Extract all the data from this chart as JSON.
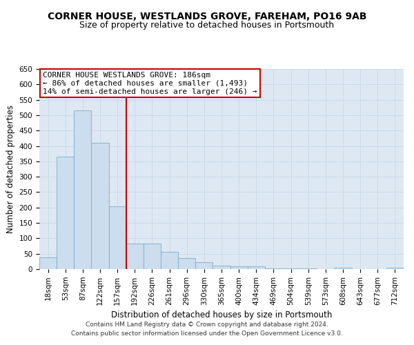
{
  "title": "CORNER HOUSE, WESTLANDS GROVE, FAREHAM, PO16 9AB",
  "subtitle": "Size of property relative to detached houses in Portsmouth",
  "xlabel": "Distribution of detached houses by size in Portsmouth",
  "ylabel": "Number of detached properties",
  "bar_labels": [
    "18sqm",
    "53sqm",
    "87sqm",
    "122sqm",
    "157sqm",
    "192sqm",
    "226sqm",
    "261sqm",
    "296sqm",
    "330sqm",
    "365sqm",
    "400sqm",
    "434sqm",
    "469sqm",
    "504sqm",
    "539sqm",
    "573sqm",
    "608sqm",
    "643sqm",
    "677sqm",
    "712sqm"
  ],
  "bar_values": [
    37,
    365,
    515,
    410,
    205,
    82,
    82,
    57,
    35,
    22,
    12,
    8,
    8,
    2,
    2,
    2,
    0,
    4,
    0,
    0,
    4
  ],
  "bar_color": "#ccdded",
  "bar_edge_color": "#7aaccc",
  "vline_index": 5,
  "vline_color": "#cc0000",
  "annotation_text": "CORNER HOUSE WESTLANDS GROVE: 186sqm\n← 86% of detached houses are smaller (1,493)\n14% of semi-detached houses are larger (246) →",
  "annotation_box_color": "#ffffff",
  "annotation_box_edge_color": "#cc0000",
  "ylim": [
    0,
    650
  ],
  "yticks": [
    0,
    50,
    100,
    150,
    200,
    250,
    300,
    350,
    400,
    450,
    500,
    550,
    600,
    650
  ],
  "grid_color": "#c8d8e8",
  "background_color": "#dde8f2",
  "footer_text": "Contains HM Land Registry data © Crown copyright and database right 2024.\nContains public sector information licensed under the Open Government Licence v3.0.",
  "title_fontsize": 10,
  "subtitle_fontsize": 9,
  "axis_label_fontsize": 8.5,
  "tick_fontsize": 7.5,
  "annotation_fontsize": 8,
  "footer_fontsize": 6.5
}
